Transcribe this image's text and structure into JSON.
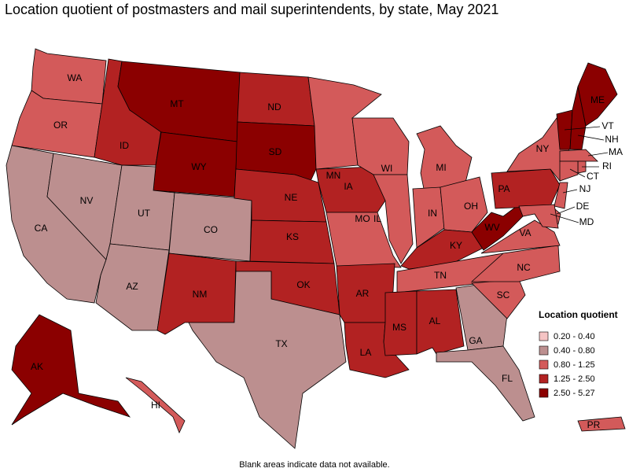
{
  "title": "Location quotient of postmasters and mail superintendents, by state, May 2021",
  "legend": {
    "title": "Location quotient",
    "items": [
      {
        "label": "0.20 - 0.40",
        "color": "#f5c4c4"
      },
      {
        "label": "0.40 - 0.80",
        "color": "#bc8f8f"
      },
      {
        "label": "0.80 - 1.25",
        "color": "#d35a5a"
      },
      {
        "label": "1.25 - 2.50",
        "color": "#b22222"
      },
      {
        "label": "2.50 - 5.27",
        "color": "#8b0000"
      }
    ]
  },
  "states": [
    {
      "abbr": "WA",
      "color": "#d35a5a"
    },
    {
      "abbr": "OR",
      "color": "#d35a5a"
    },
    {
      "abbr": "CA",
      "color": "#bc8f8f"
    },
    {
      "abbr": "NV",
      "color": "#bc8f8f"
    },
    {
      "abbr": "ID",
      "color": "#b22222"
    },
    {
      "abbr": "MT",
      "color": "#8b0000"
    },
    {
      "abbr": "WY",
      "color": "#8b0000"
    },
    {
      "abbr": "UT",
      "color": "#bc8f8f"
    },
    {
      "abbr": "CO",
      "color": "#bc8f8f"
    },
    {
      "abbr": "AZ",
      "color": "#bc8f8f"
    },
    {
      "abbr": "NM",
      "color": "#b22222"
    },
    {
      "abbr": "ND",
      "color": "#b22222"
    },
    {
      "abbr": "SD",
      "color": "#8b0000"
    },
    {
      "abbr": "NE",
      "color": "#b22222"
    },
    {
      "abbr": "KS",
      "color": "#b22222"
    },
    {
      "abbr": "OK",
      "color": "#b22222"
    },
    {
      "abbr": "TX",
      "color": "#bc8f8f"
    },
    {
      "abbr": "MN",
      "color": "#d35a5a"
    },
    {
      "abbr": "IA",
      "color": "#b22222"
    },
    {
      "abbr": "MO",
      "color": "#d35a5a"
    },
    {
      "abbr": "AR",
      "color": "#b22222"
    },
    {
      "abbr": "LA",
      "color": "#b22222"
    },
    {
      "abbr": "WI",
      "color": "#d35a5a"
    },
    {
      "abbr": "IL",
      "color": "#d35a5a"
    },
    {
      "abbr": "MI",
      "color": "#d35a5a"
    },
    {
      "abbr": "IN",
      "color": "#d35a5a"
    },
    {
      "abbr": "OH",
      "color": "#d35a5a"
    },
    {
      "abbr": "KY",
      "color": "#b22222"
    },
    {
      "abbr": "TN",
      "color": "#d35a5a"
    },
    {
      "abbr": "MS",
      "color": "#b22222"
    },
    {
      "abbr": "AL",
      "color": "#b22222"
    },
    {
      "abbr": "GA",
      "color": "#bc8f8f"
    },
    {
      "abbr": "FL",
      "color": "#bc8f8f"
    },
    {
      "abbr": "SC",
      "color": "#d35a5a"
    },
    {
      "abbr": "NC",
      "color": "#d35a5a"
    },
    {
      "abbr": "VA",
      "color": "#d35a5a"
    },
    {
      "abbr": "WV",
      "color": "#8b0000"
    },
    {
      "abbr": "PA",
      "color": "#b22222"
    },
    {
      "abbr": "NY",
      "color": "#d35a5a"
    },
    {
      "abbr": "VT",
      "color": "#8b0000"
    },
    {
      "abbr": "NH",
      "color": "#8b0000"
    },
    {
      "abbr": "ME",
      "color": "#8b0000"
    },
    {
      "abbr": "MA",
      "color": "#d35a5a"
    },
    {
      "abbr": "RI",
      "color": "#d35a5a"
    },
    {
      "abbr": "CT",
      "color": "#d35a5a"
    },
    {
      "abbr": "NJ",
      "color": "#d35a5a"
    },
    {
      "abbr": "DE",
      "color": "#d35a5a"
    },
    {
      "abbr": "MD",
      "color": "#d35a5a"
    },
    {
      "abbr": "AK",
      "color": "#8b0000"
    },
    {
      "abbr": "HI",
      "color": "#d35a5a"
    },
    {
      "abbr": "PR",
      "color": "#d35a5a"
    }
  ],
  "note": "Blank areas indicate data not available."
}
